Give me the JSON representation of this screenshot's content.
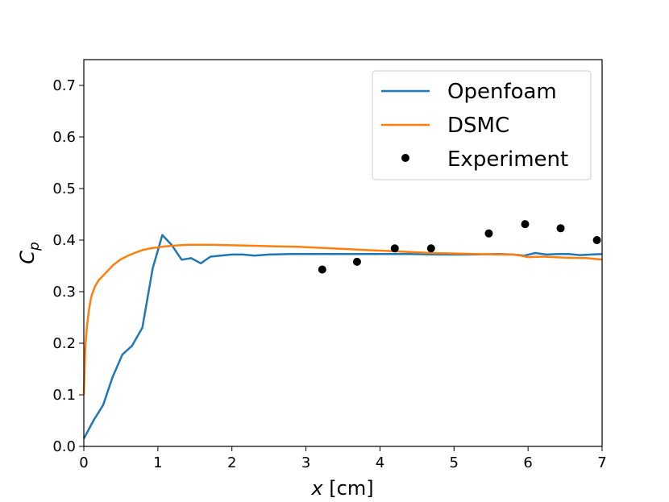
{
  "chart_data": {
    "type": "line",
    "title": "",
    "xlabel": "x [cm]",
    "xlabel_var": "x",
    "xlabel_unit": "[cm]",
    "ylabel": "C_p",
    "ylabel_main": "C",
    "ylabel_sub": "p",
    "xlim": [
      0,
      7
    ],
    "ylim": [
      0,
      0.75
    ],
    "xticks": [
      0,
      1,
      2,
      3,
      4,
      5,
      6,
      7
    ],
    "xtick_labels": [
      "0",
      "1",
      "2",
      "3",
      "4",
      "5",
      "6",
      "7"
    ],
    "yticks": [
      0,
      0.1,
      0.2,
      0.3,
      0.4,
      0.5,
      0.6,
      0.7
    ],
    "ytick_labels": [
      "0.0",
      "0.1",
      "0.2",
      "0.3",
      "0.4",
      "0.5",
      "0.6",
      "0.7"
    ],
    "grid": false,
    "legend_position": "top-right",
    "series": [
      {
        "name": "Openfoam",
        "kind": "line",
        "color": "#1f77b4",
        "x": [
          0,
          0.13,
          0.26,
          0.39,
          0.52,
          0.65,
          0.79,
          0.93,
          1.06,
          1.19,
          1.32,
          1.45,
          1.58,
          1.71,
          1.85,
          2.0,
          2.15,
          2.3,
          2.5,
          2.8,
          3.2,
          3.6,
          4.0,
          4.4,
          4.8,
          5.2,
          5.6,
          5.8,
          5.95,
          6.1,
          6.25,
          6.4,
          6.55,
          6.7,
          6.85,
          7.0
        ],
        "y": [
          0.015,
          0.05,
          0.08,
          0.135,
          0.178,
          0.195,
          0.23,
          0.345,
          0.41,
          0.39,
          0.362,
          0.365,
          0.355,
          0.368,
          0.37,
          0.372,
          0.372,
          0.37,
          0.372,
          0.373,
          0.373,
          0.373,
          0.373,
          0.373,
          0.372,
          0.372,
          0.373,
          0.372,
          0.37,
          0.375,
          0.372,
          0.373,
          0.373,
          0.371,
          0.372,
          0.373
        ]
      },
      {
        "name": "DSMC",
        "kind": "line",
        "color": "#ff7f0e",
        "x": [
          0,
          0.02,
          0.04,
          0.07,
          0.1,
          0.15,
          0.2,
          0.3,
          0.4,
          0.5,
          0.6,
          0.7,
          0.8,
          0.9,
          1.0,
          1.1,
          1.2,
          1.3,
          1.4,
          1.5,
          1.7,
          2.0,
          2.3,
          2.6,
          2.9,
          3.2,
          3.5,
          3.8,
          4.1,
          4.4,
          4.7,
          5.0,
          5.3,
          5.6,
          5.8,
          5.9,
          6.0,
          6.2,
          6.5,
          6.8,
          7.0
        ],
        "y": [
          0.1,
          0.19,
          0.23,
          0.265,
          0.29,
          0.31,
          0.322,
          0.337,
          0.352,
          0.363,
          0.37,
          0.376,
          0.381,
          0.384,
          0.386,
          0.388,
          0.389,
          0.39,
          0.391,
          0.391,
          0.391,
          0.39,
          0.389,
          0.388,
          0.387,
          0.385,
          0.383,
          0.381,
          0.379,
          0.377,
          0.375,
          0.374,
          0.373,
          0.372,
          0.372,
          0.37,
          0.367,
          0.368,
          0.366,
          0.365,
          0.362
        ]
      },
      {
        "name": "Experiment",
        "kind": "scatter",
        "color": "#000000",
        "x": [
          3.22,
          3.69,
          4.2,
          4.69,
          5.47,
          5.96,
          6.44,
          6.93
        ],
        "y": [
          0.343,
          0.358,
          0.384,
          0.384,
          0.413,
          0.431,
          0.423,
          0.4
        ]
      }
    ]
  }
}
